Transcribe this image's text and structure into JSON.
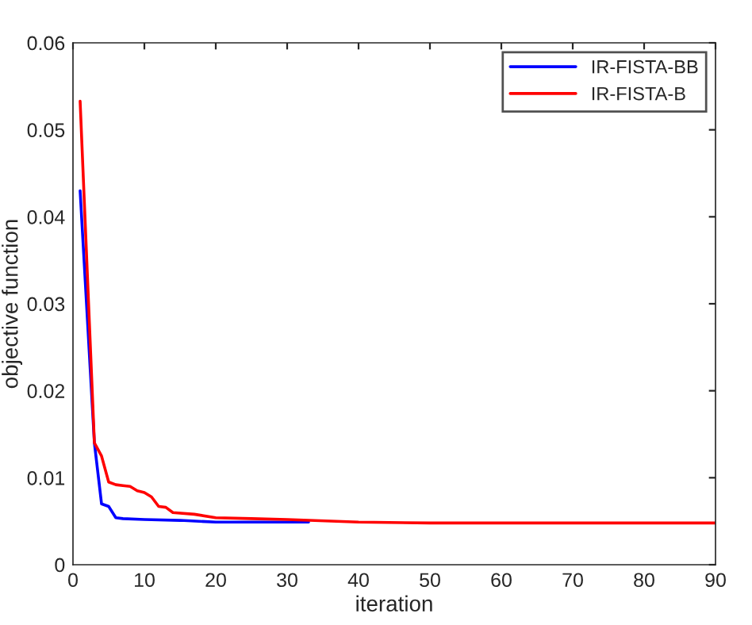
{
  "chart_data": {
    "type": "line",
    "xlabel": "iteration",
    "ylabel": "objective function",
    "xlim": [
      0,
      90
    ],
    "xticks": [
      0,
      10,
      20,
      30,
      40,
      50,
      60,
      70,
      80,
      90
    ],
    "ylim": [
      0,
      0.06
    ],
    "yticks": [
      0,
      0.01,
      0.02,
      0.03,
      0.04,
      0.05,
      0.06
    ],
    "grid": false,
    "legend": "top right",
    "line_style": "solid",
    "marker": "none",
    "series": [
      {
        "name": "IR-FISTA-BB",
        "color": "#0000ff",
        "x": [
          1,
          3,
          4,
          5,
          6,
          7,
          10,
          15,
          20,
          25,
          33
        ],
        "values": [
          0.043,
          0.014,
          0.007,
          0.0067,
          0.0054,
          0.0053,
          0.0052,
          0.0051,
          0.0049,
          0.0049,
          0.0049
        ]
      },
      {
        "name": "IR-FISTA-B",
        "color": "#ff0000",
        "x": [
          1,
          3,
          4,
          5,
          6,
          7,
          8,
          9,
          10,
          11,
          12,
          13,
          14,
          17,
          20,
          25,
          30,
          40,
          50,
          90
        ],
        "values": [
          0.0533,
          0.014,
          0.0125,
          0.0095,
          0.0092,
          0.0091,
          0.009,
          0.0085,
          0.0083,
          0.0078,
          0.0067,
          0.0066,
          0.006,
          0.0058,
          0.0054,
          0.0053,
          0.0052,
          0.0049,
          0.0048,
          0.0048
        ]
      }
    ]
  }
}
